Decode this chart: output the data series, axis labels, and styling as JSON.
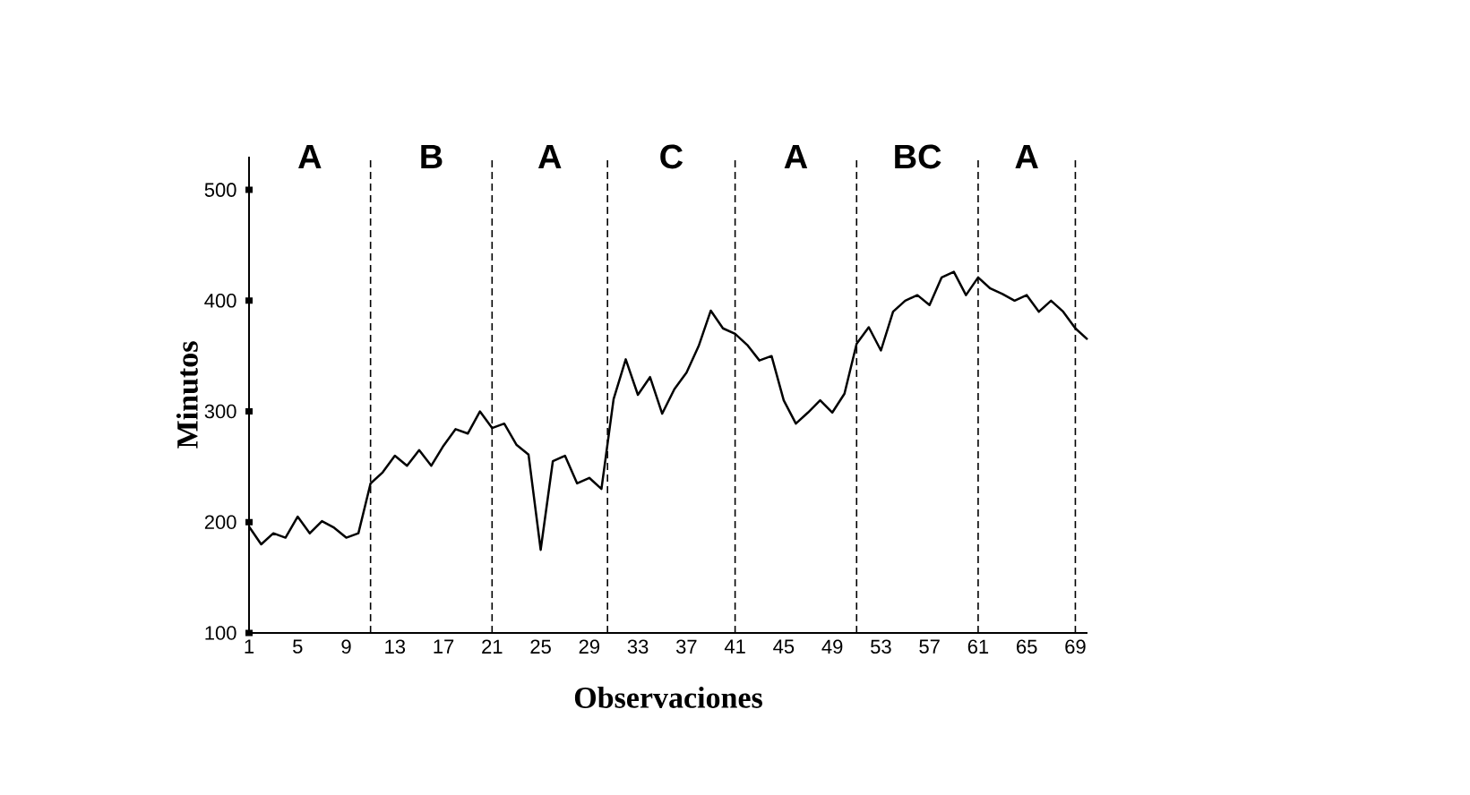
{
  "chart_data": {
    "type": "line",
    "xlabel": "Observaciones",
    "ylabel": "Minutos",
    "x": [
      1,
      2,
      3,
      4,
      5,
      6,
      7,
      8,
      9,
      10,
      11,
      12,
      13,
      14,
      15,
      16,
      17,
      18,
      19,
      20,
      21,
      22,
      23,
      24,
      25,
      26,
      27,
      28,
      29,
      30,
      31,
      32,
      33,
      34,
      35,
      36,
      37,
      38,
      39,
      40,
      41,
      42,
      43,
      44,
      45,
      46,
      47,
      48,
      49,
      50,
      51,
      52,
      53,
      54,
      55,
      56,
      57,
      58,
      59,
      60,
      61,
      62,
      63,
      64,
      65,
      66,
      67,
      68,
      69,
      70
    ],
    "series": [
      {
        "color": "#000000",
        "values": [
          196,
          180,
          190,
          186,
          205,
          190,
          201,
          195,
          186,
          190,
          235,
          245,
          260,
          251,
          265,
          251,
          269,
          284,
          280,
          300,
          285,
          289,
          270,
          261,
          175,
          255,
          260,
          235,
          240,
          230,
          311,
          347,
          315,
          331,
          298,
          320,
          335,
          359,
          391,
          375,
          370,
          360,
          346,
          350,
          310,
          289,
          299,
          310,
          299,
          316,
          361,
          376,
          355,
          390,
          400,
          405,
          396,
          421,
          426,
          405,
          421,
          411,
          406,
          400,
          405,
          390,
          400,
          390,
          375,
          365
        ]
      }
    ],
    "xlim": [
      1,
      70
    ],
    "ylim": [
      100,
      530
    ],
    "xticks": [
      1,
      5,
      9,
      13,
      17,
      21,
      25,
      29,
      33,
      37,
      41,
      45,
      49,
      53,
      57,
      61,
      65,
      69
    ],
    "yticks": [
      100,
      200,
      300,
      400,
      500
    ],
    "ref_lines": [
      {
        "axis": "x",
        "value": 11,
        "line_style": "dashed"
      },
      {
        "axis": "x",
        "value": 21,
        "line_style": "dashed"
      },
      {
        "axis": "x",
        "value": 30.5,
        "line_style": "dashed"
      },
      {
        "axis": "x",
        "value": 41,
        "line_style": "dashed"
      },
      {
        "axis": "x",
        "value": 51,
        "line_style": "dashed"
      },
      {
        "axis": "x",
        "value": 61,
        "line_style": "dashed"
      },
      {
        "axis": "x",
        "value": 69,
        "line_style": "dashed"
      }
    ],
    "annotations": [
      "A",
      "B",
      "A",
      "C",
      "A",
      "BC",
      "A"
    ]
  }
}
